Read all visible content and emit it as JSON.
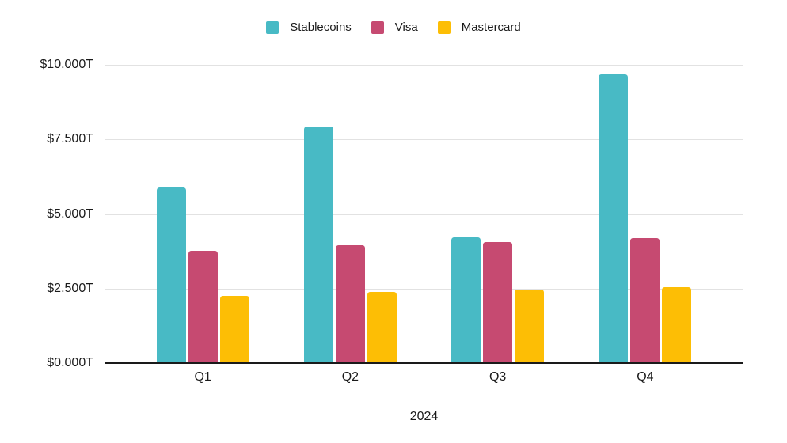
{
  "chart_data": {
    "type": "bar",
    "title": "",
    "categories": [
      "Q1",
      "Q2",
      "Q3",
      "Q4"
    ],
    "series": [
      {
        "name": "Stablecoins",
        "color": "#48BAC5",
        "values": [
          5.88,
          7.92,
          4.21,
          9.68
        ]
      },
      {
        "name": "Visa",
        "color": "#C64A71",
        "values": [
          3.78,
          3.96,
          4.05,
          4.18
        ]
      },
      {
        "name": "Mastercard",
        "color": "#FDBE05",
        "values": [
          2.26,
          2.38,
          2.48,
          2.54
        ]
      }
    ],
    "xlabel": "2024",
    "ylabel": "",
    "ylim": [
      0,
      10
    ],
    "ytick_interval": 2.5,
    "ytick_labels": [
      "$0.000T",
      "$2.500T",
      "$5.000T",
      "$7.500T",
      "$10.000T"
    ],
    "grid": true,
    "legend_position": "top",
    "colors": {
      "background": "#ffffff",
      "gridline": "#e2e2e2",
      "axis_line": "#1a1a1a",
      "text": "#1a1a1a"
    }
  }
}
